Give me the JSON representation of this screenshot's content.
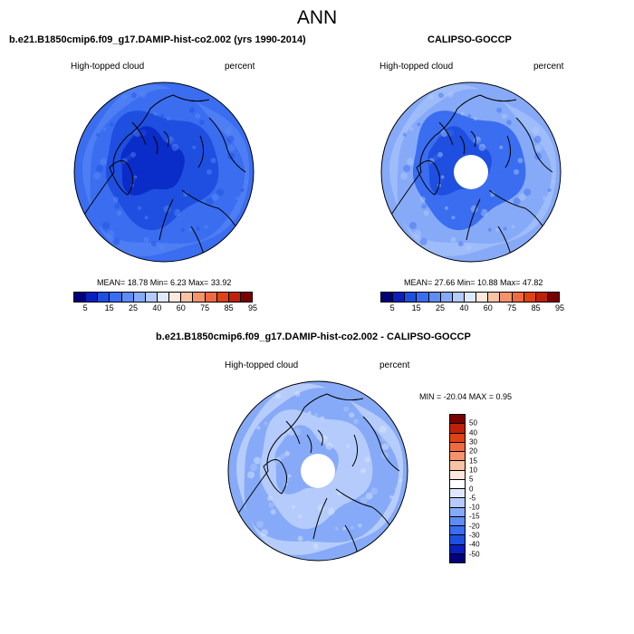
{
  "title": "ANN",
  "variable_label": "High-topped cloud",
  "units_label": "percent",
  "panels": {
    "model": {
      "title": "b.e21.B1850cmip6.f09_g17.DAMIP-hist-co2.002 (yrs 1990-2014)",
      "stats": "MEAN=  18.78  Min=   6.23  Max=  33.92"
    },
    "obs": {
      "title": "CALIPSO-GOCCP",
      "stats": "MEAN=  27.66  Min=  10.88  Max=  47.82"
    },
    "diff": {
      "title": "b.e21.B1850cmip6.f09_g17.DAMIP-hist-co2.002 - CALIPSO-GOCCP",
      "stats": "MIN = -20.04 MAX =   0.95"
    }
  },
  "colorbar_abs": {
    "ticks": [
      "5",
      "15",
      "25",
      "40",
      "60",
      "75",
      "85",
      "95"
    ],
    "colors": [
      "#00007a",
      "#0a1fc0",
      "#1e4fe0",
      "#3a6df0",
      "#5e8cf5",
      "#86aaf8",
      "#b4cbfb",
      "#dfe9fd",
      "#fde9dc",
      "#f8c2a4",
      "#f4946c",
      "#ef6a3f",
      "#e04216",
      "#c0200a",
      "#7a0000"
    ]
  },
  "colorbar_diff": {
    "ticks": [
      "50",
      "40",
      "30",
      "20",
      "15",
      "10",
      "5",
      "0",
      "-5",
      "-10",
      "-15",
      "-20",
      "-30",
      "-40",
      "-50"
    ],
    "colors": [
      "#7a0000",
      "#c0200a",
      "#e04216",
      "#ef6a3f",
      "#f4946c",
      "#f8c2a4",
      "#fde9dc",
      "#ffffff",
      "#dfe9fd",
      "#b4cbfb",
      "#86aaf8",
      "#5e8cf5",
      "#3a6df0",
      "#1e4fe0",
      "#0a1fc0",
      "#00007a"
    ]
  },
  "map_fields": {
    "model": {
      "base": "#3a6df0",
      "inner": "#1e4fe0",
      "core": "#0a2cc8",
      "edge": "#5e8cf5",
      "pole_hole": false
    },
    "obs": {
      "base": "#86aaf8",
      "inner": "#3a6df0",
      "core": "#1e4fe0",
      "edge": "#b4cbfb",
      "pole_hole": true
    },
    "diff": {
      "base": "#86aaf8",
      "inner": "#b4cbfb",
      "core": "#86aaf8",
      "edge": "#dfe9fd",
      "pole_hole": true
    }
  }
}
